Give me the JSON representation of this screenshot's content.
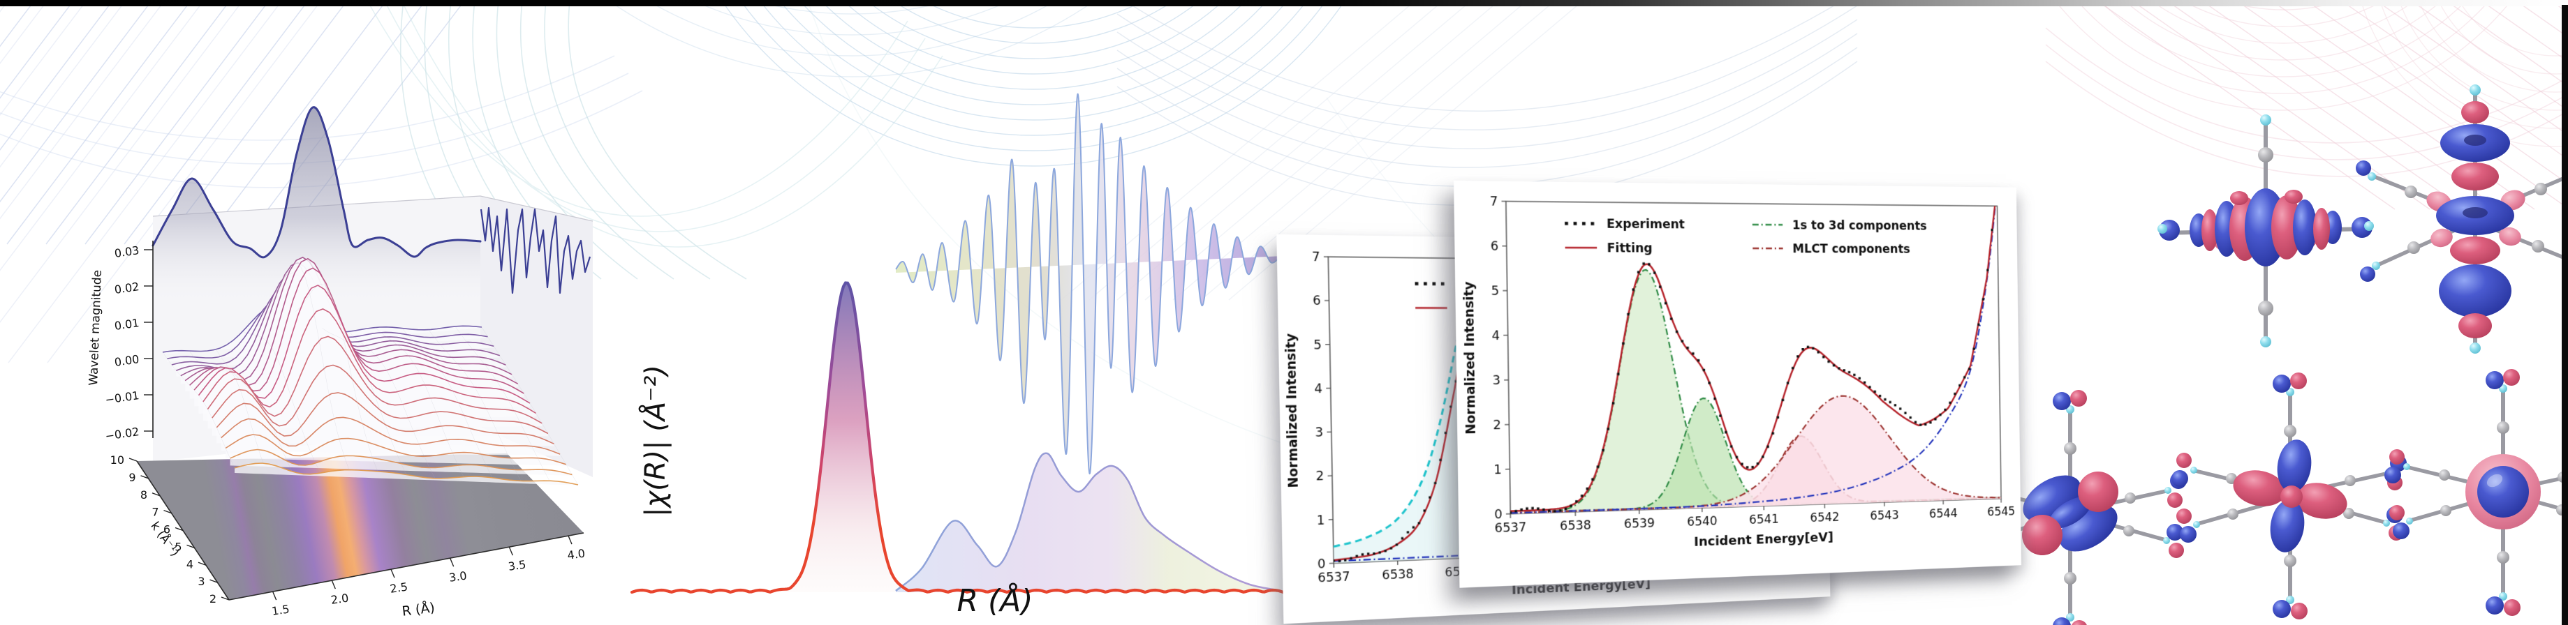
{
  "page": {
    "background": "#ffffff",
    "top_bar_left_color": "#000000",
    "top_bar_right_color": "#ffffff",
    "right_edge_bar_color": "#0a0a0a"
  },
  "left_plot": {
    "zlabel": "Wavelet magnitude",
    "z_ticks": [
      "0.03",
      "0.02",
      "0.01",
      "0.00",
      "−0.01",
      "−0.02"
    ],
    "k_label": "k (Å⁻¹)",
    "k_ticks": [
      "2",
      "3",
      "4",
      "5",
      "6",
      "7",
      "8",
      "9",
      "10"
    ],
    "r_label": "R (Å)",
    "r_ticks": [
      "1.5",
      "2.0",
      "2.5",
      "3.0",
      "3.5",
      "4.0"
    ]
  },
  "middle_plot": {
    "ylabel": "|χ(R)| (Å⁻²)",
    "xlabel": "R (Å)"
  },
  "cards": {
    "back": {
      "ylabel": "Normalized Intensity",
      "xlabel": "Incident Energy[eV]",
      "x_ticks": [
        "6537",
        "6538",
        "6539",
        "6540",
        "6541",
        "6542",
        "6543",
        "6544",
        "6545"
      ],
      "y_ticks": [
        "0",
        "1",
        "2",
        "3",
        "4",
        "5",
        "6",
        "7"
      ],
      "legend": [
        {
          "label": "Experiment",
          "color": "#111111",
          "style": "dotted"
        },
        {
          "label": "Fitting",
          "color": "#b5222a",
          "style": "solid"
        }
      ]
    },
    "front": {
      "ylabel": "Normalized Intensity",
      "xlabel": "Incident Energy[eV]",
      "x_ticks": [
        "6537",
        "6538",
        "6539",
        "6540",
        "6541",
        "6542",
        "6543",
        "6544",
        "6545"
      ],
      "y_ticks": [
        "0",
        "1",
        "2",
        "3",
        "4",
        "5",
        "6",
        "7"
      ],
      "legend": [
        {
          "label": "Experiment",
          "color": "#111111",
          "style": "dotted"
        },
        {
          "label": "Fitting",
          "color": "#b5222a",
          "style": "solid"
        },
        {
          "label": "1s to 3d components",
          "color": "#2f8b45",
          "style": "dashdot"
        },
        {
          "label": "MLCT components",
          "color": "#9c3430",
          "style": "dashdot"
        }
      ]
    }
  },
  "molecules": {
    "count": 5,
    "description": "metal hexacyanide molecular-orbital isosurfaces",
    "lobe_positive_color": "#3a49bb",
    "lobe_negative_color": "#d05070",
    "carbon_color": "#9a9aa2",
    "tip_color": "#7fd8e8"
  },
  "chart_data": [
    {
      "id": "wavelet_surface",
      "type": "heatmap",
      "xlabel": "R (Å)",
      "ylabel": "k (Å⁻¹)",
      "zlabel": "Wavelet magnitude",
      "x_range": [
        1.13,
        4.13
      ],
      "y_range": [
        2,
        10
      ],
      "x_ticks": [
        1.5,
        2.0,
        2.5,
        3.0,
        3.5,
        4.0
      ],
      "y_ticks": [
        2,
        3,
        4,
        5,
        6,
        7,
        8,
        9,
        10
      ],
      "z_ticks": [
        0.03,
        0.02,
        0.01,
        0.0,
        -0.01,
        -0.02
      ],
      "peaks": [
        {
          "R": 2.2,
          "k": 6.8,
          "amp": 0.035,
          "wR": 0.34,
          "wk": 2.9
        },
        {
          "R": 1.42,
          "k": 5.2,
          "amp": 0.013,
          "wR": 0.26,
          "wk": 2.6
        },
        {
          "R": 3.0,
          "k": 6.5,
          "amp": 0.009,
          "wR": 0.34,
          "wk": 3.0
        },
        {
          "R": 3.62,
          "k": 6.0,
          "amp": 0.006,
          "wR": 0.35,
          "wk": 3.0
        },
        {
          "R": 1.8,
          "k": 6.0,
          "amp": -0.005,
          "wR": 0.22,
          "wk": 3.0
        }
      ]
    },
    {
      "id": "chi_R",
      "type": "area",
      "xlabel": "R (Å)",
      "ylabel": "|χ(R)| (Å⁻²)",
      "peaks_frac": [
        {
          "c": 0.327,
          "h": 1.0,
          "w": 0.029
        },
        {
          "c": 0.49,
          "h": 0.232,
          "w": 0.04
        },
        {
          "c": 0.63,
          "h": 0.448,
          "w": 0.036
        },
        {
          "c": 0.735,
          "h": 0.405,
          "w": 0.038
        },
        {
          "c": 0.8,
          "h": 0.14,
          "w": 0.05
        }
      ]
    },
    {
      "id": "chi_k",
      "type": "line",
      "points": [
        [
          0,
          0.02
        ],
        [
          0.02,
          0.06
        ],
        [
          0.045,
          -0.05
        ],
        [
          0.07,
          0.1
        ],
        [
          0.095,
          -0.09
        ],
        [
          0.12,
          0.16
        ],
        [
          0.15,
          -0.15
        ],
        [
          0.18,
          0.28
        ],
        [
          0.21,
          -0.26
        ],
        [
          0.24,
          0.42
        ],
        [
          0.27,
          -0.44
        ],
        [
          0.3,
          0.62
        ],
        [
          0.33,
          -0.65
        ],
        [
          0.36,
          0.48
        ],
        [
          0.385,
          -0.35
        ],
        [
          0.41,
          0.55
        ],
        [
          0.44,
          -0.9
        ],
        [
          0.47,
          0.98
        ],
        [
          0.5,
          -1.0
        ],
        [
          0.53,
          0.8
        ],
        [
          0.555,
          -0.5
        ],
        [
          0.58,
          0.72
        ],
        [
          0.61,
          -0.62
        ],
        [
          0.64,
          0.55
        ],
        [
          0.67,
          -0.5
        ],
        [
          0.7,
          0.42
        ],
        [
          0.73,
          -0.34
        ],
        [
          0.76,
          0.3
        ],
        [
          0.79,
          -0.22
        ],
        [
          0.82,
          0.2
        ],
        [
          0.85,
          -0.14
        ],
        [
          0.88,
          0.12
        ],
        [
          0.91,
          -0.08
        ],
        [
          0.94,
          0.06
        ],
        [
          0.97,
          -0.03
        ],
        [
          1,
          0.02
        ]
      ]
    },
    {
      "id": "rixs_back",
      "type": "line",
      "xlabel": "Incident Energy[eV]",
      "ylabel": "Normalized Intensity",
      "xlim": [
        6537,
        6545
      ],
      "ylim": [
        0,
        7
      ],
      "series": {
        "calculated": [
          [
            6537,
            0.38
          ],
          [
            6537.5,
            0.55
          ],
          [
            6538,
            0.95
          ],
          [
            6538.4,
            1.8
          ],
          [
            6538.7,
            3.1
          ],
          [
            6539.0,
            5.0
          ],
          [
            6539.15,
            5.75
          ],
          [
            6539.45,
            5.3
          ],
          [
            6539.75,
            4.8
          ],
          [
            6540.05,
            4.58
          ],
          [
            6540.35,
            4.5
          ],
          [
            6540.7,
            4.05
          ],
          [
            6541.1,
            3.0
          ],
          [
            6541.6,
            1.85
          ],
          [
            6542.1,
            1.0
          ],
          [
            6542.6,
            0.58
          ],
          [
            6543.1,
            0.37
          ],
          [
            6543.6,
            0.26
          ],
          [
            6544.1,
            0.19
          ],
          [
            6544.6,
            0.14
          ],
          [
            6545,
            0.12
          ]
        ],
        "fitting": [
          [
            6537,
            0.07
          ],
          [
            6537.6,
            0.16
          ],
          [
            6538,
            0.38
          ],
          [
            6538.35,
            0.85
          ],
          [
            6538.65,
            1.9
          ],
          [
            6538.95,
            3.9
          ],
          [
            6539.2,
            5.6
          ],
          [
            6539.5,
            5.32
          ],
          [
            6539.8,
            4.8
          ],
          [
            6540.1,
            4.5
          ],
          [
            6540.4,
            4.1
          ],
          [
            6540.8,
            3.35
          ],
          [
            6541.2,
            2.7
          ],
          [
            6541.7,
            2.1
          ],
          [
            6542.3,
            1.75
          ],
          [
            6543,
            1.9
          ],
          [
            6543.7,
            2.2
          ],
          [
            6544.3,
            3.2
          ],
          [
            6544.8,
            5.2
          ],
          [
            6545,
            6.6
          ]
        ],
        "edge": [
          [
            6537,
            0.05
          ],
          [
            6539,
            0.06
          ],
          [
            6541,
            0.09
          ],
          [
            6542,
            0.2
          ],
          [
            6542.7,
            0.38
          ],
          [
            6543.3,
            0.62
          ],
          [
            6543.8,
            0.95
          ],
          [
            6544.3,
            1.55
          ],
          [
            6544.7,
            2.3
          ],
          [
            6545,
            3.1
          ]
        ],
        "sticks": [
          [
            6539.1,
            3.05
          ],
          [
            6540.05,
            2.6
          ]
        ]
      }
    },
    {
      "id": "rixs_front",
      "type": "line",
      "xlabel": "Incident Energy[eV]",
      "ylabel": "Normalized Intensity",
      "xlim": [
        6537,
        6545
      ],
      "ylim": [
        0,
        7
      ],
      "baseline": 0.04,
      "components": [
        {
          "name": "1s3d_A",
          "center": 6539.15,
          "height": 5.45,
          "width": 0.42,
          "stroke": "#2f8b45",
          "fill": "#cdeac2",
          "fill_opacity": 0.6
        },
        {
          "name": "1s3d_B",
          "center": 6540.05,
          "height": 2.5,
          "width": 0.34,
          "stroke": "#2f8b45",
          "fill": "#b7e0ab",
          "fill_opacity": 0.65
        },
        {
          "name": "mlct_A",
          "center": 6541.62,
          "height": 1.58,
          "width": 0.36,
          "stroke": "#9c3430",
          "fill": "#f6bfcb",
          "fill_opacity": 0.8
        },
        {
          "name": "mlct_B",
          "center": 6542.32,
          "height": 2.5,
          "width": 0.78,
          "stroke": "#9c3430",
          "fill": "#fbe2ea",
          "fill_opacity": 0.85
        }
      ],
      "edge": [
        [
          6537,
          0.02
        ],
        [
          6539.5,
          0.03
        ],
        [
          6540.5,
          0.07
        ],
        [
          6541.5,
          0.16
        ],
        [
          6542.3,
          0.32
        ],
        [
          6543,
          0.62
        ],
        [
          6543.6,
          1.1
        ],
        [
          6544.1,
          1.95
        ],
        [
          6544.5,
          3.1
        ],
        [
          6544.8,
          5.2
        ],
        [
          6545,
          7.4
        ]
      ]
    }
  ]
}
